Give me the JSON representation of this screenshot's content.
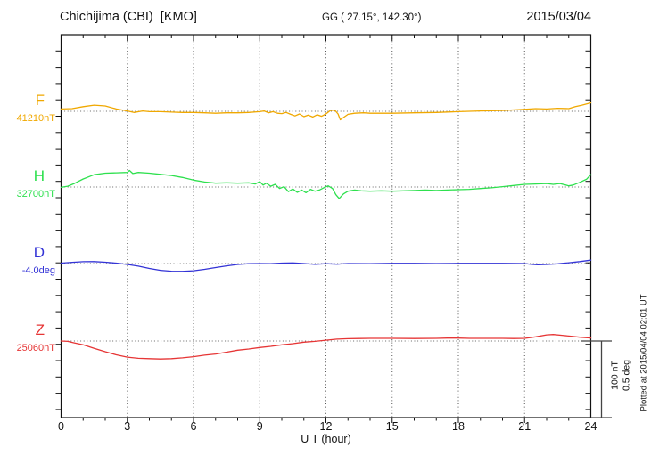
{
  "header": {
    "station_title": "Chichijima (CBI)  [KMO]",
    "coords": "GG ( 27.15°, 142.30°)",
    "date": "2015/03/04"
  },
  "xaxis": {
    "label": "U T (hour)",
    "tick_hours": [
      0,
      3,
      6,
      9,
      12,
      15,
      18,
      21,
      24
    ],
    "min_hour": 0,
    "max_hour": 24
  },
  "scale_bar": {
    "line1": "100 nT",
    "line2": "0.5 deg"
  },
  "footer_note": "Plotted at 2015/04/04 02:01 UT",
  "chart_data": {
    "type": "line",
    "title": "Chichijima (CBI) [KMO] magnetogram for 2015/03/04",
    "xlabel": "U T (hour)",
    "x_range_hours": [
      0,
      24
    ],
    "x_grid_hours": [
      3,
      6,
      9,
      12,
      15,
      18,
      21
    ],
    "grid": "dotted",
    "scale": {
      "nT_per_division": 100,
      "deg_per_division": 0.5
    },
    "series": [
      {
        "name": "F",
        "baseline_label": "41210nT",
        "baseline_value": 41210,
        "units": "nT",
        "color": "#f0a800",
        "points": [
          [
            0,
            3
          ],
          [
            0.5,
            3.5
          ],
          [
            1,
            6
          ],
          [
            1.5,
            8
          ],
          [
            2,
            7
          ],
          [
            2.5,
            3
          ],
          [
            3,
            0.5
          ],
          [
            3.3,
            -1.5
          ],
          [
            3.7,
            0.5
          ],
          [
            4,
            -0.5
          ],
          [
            4.5,
            -0.5
          ],
          [
            5,
            -1
          ],
          [
            5.5,
            -1.5
          ],
          [
            6,
            -1.5
          ],
          [
            6.5,
            -2
          ],
          [
            7,
            -2.5
          ],
          [
            7.5,
            -2
          ],
          [
            8,
            -2
          ],
          [
            8.5,
            -1.5
          ],
          [
            9,
            -0.5
          ],
          [
            9.2,
            0.5
          ],
          [
            9.4,
            -2
          ],
          [
            9.6,
            -0.5
          ],
          [
            9.8,
            -2.5
          ],
          [
            10,
            -3
          ],
          [
            10.2,
            -1.5
          ],
          [
            10.4,
            -4
          ],
          [
            10.6,
            -6
          ],
          [
            10.8,
            -3.5
          ],
          [
            11,
            -7
          ],
          [
            11.2,
            -5
          ],
          [
            11.4,
            -7.5
          ],
          [
            11.6,
            -4.5
          ],
          [
            11.8,
            -6.5
          ],
          [
            12,
            -3.5
          ],
          [
            12.2,
            1
          ],
          [
            12.4,
            1.5
          ],
          [
            12.55,
            -3.5
          ],
          [
            12.65,
            -11
          ],
          [
            12.8,
            -8
          ],
          [
            13,
            -4
          ],
          [
            13.3,
            -2.5
          ],
          [
            13.7,
            -2
          ],
          [
            14,
            -2.5
          ],
          [
            15,
            -2.5
          ],
          [
            16,
            -2
          ],
          [
            17,
            -1.5
          ],
          [
            18,
            -0.5
          ],
          [
            19,
            0.5
          ],
          [
            20,
            1
          ],
          [
            21,
            2.5
          ],
          [
            21.5,
            3.5
          ],
          [
            22,
            3
          ],
          [
            22.5,
            4
          ],
          [
            23,
            3.5
          ],
          [
            23.3,
            6
          ],
          [
            23.6,
            8
          ],
          [
            24,
            11
          ]
        ]
      },
      {
        "name": "H",
        "baseline_label": "32700nT",
        "baseline_value": 32700,
        "units": "nT",
        "color": "#2ee04e",
        "points": [
          [
            0,
            -0.5
          ],
          [
            0.3,
            1
          ],
          [
            0.6,
            4.5
          ],
          [
            1,
            10.5
          ],
          [
            1.5,
            16
          ],
          [
            2,
            18
          ],
          [
            2.5,
            18.5
          ],
          [
            3,
            19
          ],
          [
            3.1,
            21.5
          ],
          [
            3.25,
            17.5
          ],
          [
            3.5,
            19
          ],
          [
            4,
            18
          ],
          [
            4.5,
            16.5
          ],
          [
            5,
            15
          ],
          [
            5.5,
            12.5
          ],
          [
            6,
            9
          ],
          [
            6.5,
            6.5
          ],
          [
            7,
            5
          ],
          [
            7.5,
            5.5
          ],
          [
            8,
            5
          ],
          [
            8.5,
            5.5
          ],
          [
            8.8,
            4
          ],
          [
            9,
            7
          ],
          [
            9.15,
            2.5
          ],
          [
            9.3,
            5
          ],
          [
            9.5,
            1
          ],
          [
            9.7,
            3.5
          ],
          [
            9.9,
            -2
          ],
          [
            10.1,
            0.5
          ],
          [
            10.3,
            -6
          ],
          [
            10.5,
            -2.5
          ],
          [
            10.7,
            -7
          ],
          [
            10.9,
            -4
          ],
          [
            11.1,
            -7.5
          ],
          [
            11.3,
            -3
          ],
          [
            11.5,
            -5.5
          ],
          [
            11.7,
            -4
          ],
          [
            11.9,
            -1
          ],
          [
            12.1,
            1.5
          ],
          [
            12.3,
            -2
          ],
          [
            12.45,
            -10
          ],
          [
            12.6,
            -15
          ],
          [
            12.8,
            -9
          ],
          [
            13,
            -5.5
          ],
          [
            13.3,
            -4
          ],
          [
            13.6,
            -5
          ],
          [
            14,
            -5.5
          ],
          [
            14.5,
            -5
          ],
          [
            15,
            -5.5
          ],
          [
            15.5,
            -5
          ],
          [
            16,
            -4.5
          ],
          [
            16.5,
            -4
          ],
          [
            17,
            -4.5
          ],
          [
            17.5,
            -4
          ],
          [
            18,
            -3.5
          ],
          [
            18.5,
            -3
          ],
          [
            19,
            -2
          ],
          [
            19.5,
            -1
          ],
          [
            20,
            0.5
          ],
          [
            20.5,
            2
          ],
          [
            21,
            3.5
          ],
          [
            21.5,
            4
          ],
          [
            22,
            4.5
          ],
          [
            22.3,
            3.5
          ],
          [
            22.6,
            4.5
          ],
          [
            23,
            1.5
          ],
          [
            23.2,
            2.5
          ],
          [
            23.5,
            6
          ],
          [
            23.8,
            10
          ],
          [
            24,
            16
          ]
        ]
      },
      {
        "name": "D",
        "baseline_label": "-4.0deg",
        "baseline_value": -4.0,
        "units": "deg",
        "color": "#3333d6",
        "points": [
          [
            0,
            0.003
          ],
          [
            0.5,
            0.008
          ],
          [
            1,
            0.012
          ],
          [
            1.5,
            0.013
          ],
          [
            2,
            0.009
          ],
          [
            2.5,
            0.003
          ],
          [
            3,
            -0.006
          ],
          [
            3.5,
            -0.017
          ],
          [
            4,
            -0.032
          ],
          [
            4.5,
            -0.044
          ],
          [
            5,
            -0.05
          ],
          [
            5.5,
            -0.051
          ],
          [
            6,
            -0.047
          ],
          [
            6.5,
            -0.038
          ],
          [
            7,
            -0.026
          ],
          [
            7.5,
            -0.015
          ],
          [
            8,
            -0.006
          ],
          [
            8.5,
            -0.001
          ],
          [
            9,
            0
          ],
          [
            9.5,
            -0.001
          ],
          [
            10,
            0.003
          ],
          [
            10.5,
            0.004
          ],
          [
            11,
            0
          ],
          [
            11.5,
            -0.005
          ],
          [
            12,
            -0.001
          ],
          [
            12.5,
            -0.004
          ],
          [
            13,
            0
          ],
          [
            14,
            -0.001
          ],
          [
            15,
            0.001
          ],
          [
            16,
            0.001
          ],
          [
            17,
            0
          ],
          [
            18,
            0.001
          ],
          [
            19,
            0.001
          ],
          [
            20,
            0.001
          ],
          [
            21,
            0
          ],
          [
            21.3,
            -0.005
          ],
          [
            21.6,
            -0.008
          ],
          [
            22,
            -0.006
          ],
          [
            22.5,
            -0.002
          ],
          [
            23,
            0.005
          ],
          [
            23.5,
            0.013
          ],
          [
            24,
            0.022
          ]
        ]
      },
      {
        "name": "Z",
        "baseline_label": "25060nT",
        "baseline_value": 25060,
        "units": "nT",
        "color": "#e63535",
        "points": [
          [
            0,
            0
          ],
          [
            0.3,
            -0.5
          ],
          [
            0.6,
            -2.5
          ],
          [
            1,
            -5
          ],
          [
            1.5,
            -9.5
          ],
          [
            2,
            -14
          ],
          [
            2.5,
            -18
          ],
          [
            3,
            -21
          ],
          [
            3.5,
            -22.5
          ],
          [
            4,
            -23
          ],
          [
            4.5,
            -23.5
          ],
          [
            5,
            -23
          ],
          [
            5.5,
            -22
          ],
          [
            6,
            -20.5
          ],
          [
            6.5,
            -18.5
          ],
          [
            7,
            -17
          ],
          [
            7.5,
            -14.5
          ],
          [
            8,
            -12
          ],
          [
            8.5,
            -10.5
          ],
          [
            9,
            -8.5
          ],
          [
            9.5,
            -7
          ],
          [
            10,
            -5
          ],
          [
            10.5,
            -3.5
          ],
          [
            11,
            -1.5
          ],
          [
            11.5,
            -0.5
          ],
          [
            12,
            1
          ],
          [
            12.5,
            2.5
          ],
          [
            13,
            3
          ],
          [
            13.5,
            3.2
          ],
          [
            14,
            3.5
          ],
          [
            15,
            3.5
          ],
          [
            16,
            3.2
          ],
          [
            17,
            3.5
          ],
          [
            17.5,
            3.8
          ],
          [
            18,
            3.8
          ],
          [
            18.5,
            3.5
          ],
          [
            19,
            3.5
          ],
          [
            20,
            3.5
          ],
          [
            20.5,
            3.3
          ],
          [
            21,
            3.5
          ],
          [
            21.5,
            5.5
          ],
          [
            22,
            8
          ],
          [
            22.3,
            8.5
          ],
          [
            22.7,
            7.5
          ],
          [
            23,
            6.5
          ],
          [
            23.5,
            5
          ],
          [
            24,
            4
          ]
        ]
      }
    ]
  }
}
